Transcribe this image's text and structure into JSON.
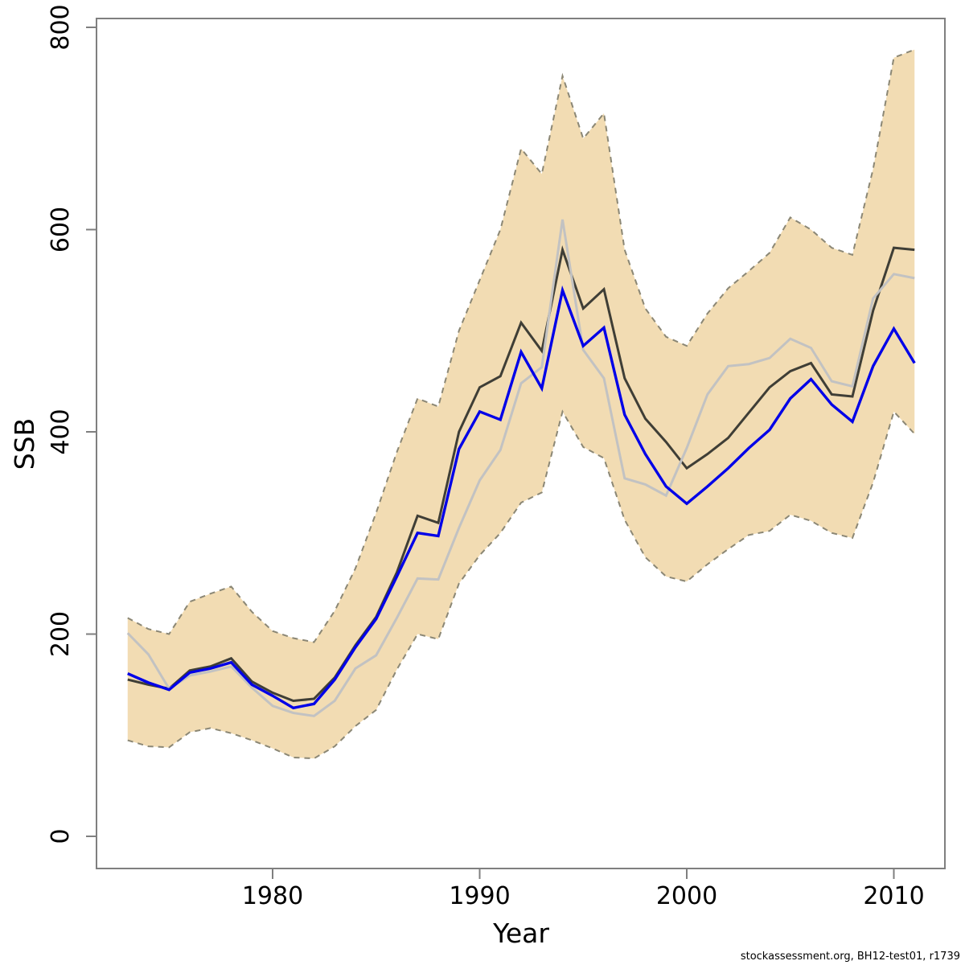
{
  "page": {
    "footer": "stockassessment.org, BH12-test01, r1739"
  },
  "chart_data": {
    "type": "line",
    "title": "",
    "xlabel": "Year",
    "ylabel": "SSB",
    "x_ticks": [
      1980,
      1990,
      2000,
      2010
    ],
    "y_ticks": [
      0,
      200,
      400,
      600,
      800
    ],
    "xlim": [
      1972.4,
      2012.3
    ],
    "ylim": [
      -32,
      809
    ],
    "grid": "off",
    "legend_position": "none",
    "years": [
      1973,
      1974,
      1975,
      1976,
      1977,
      1978,
      1979,
      1980,
      1981,
      1982,
      1983,
      1984,
      1985,
      1986,
      1987,
      1988,
      1989,
      1990,
      1991,
      1992,
      1993,
      1994,
      1995,
      1996,
      1997,
      1998,
      1999,
      2000,
      2001,
      2002,
      2003,
      2004,
      2005,
      2006,
      2007,
      2008,
      2009,
      2010,
      2011
    ],
    "series": [
      {
        "name": "ssb-estimate-dark",
        "color": "#3f3e36",
        "width": 3,
        "values": [
          155,
          150,
          146,
          164,
          168,
          176,
          153,
          142,
          134,
          136,
          157,
          189,
          217,
          261,
          317,
          310,
          400,
          444,
          455,
          508,
          480,
          580,
          522,
          541,
          453,
          413,
          390,
          364,
          378,
          394,
          419,
          444,
          460,
          468,
          437,
          435,
          520,
          582,
          580
        ]
      },
      {
        "name": "ssb-comparison-gray",
        "color": "#c2c2c2",
        "width": 3,
        "values": [
          201,
          180,
          146,
          159,
          163,
          168,
          147,
          129,
          122,
          119,
          134,
          166,
          179,
          216,
          255,
          254,
          305,
          352,
          382,
          448,
          464,
          610,
          481,
          453,
          354,
          348,
          337,
          384,
          437,
          465,
          467,
          473,
          492,
          483,
          450,
          445,
          532,
          556,
          552
        ]
      },
      {
        "name": "ssb-comparison-blue",
        "color": "#0000e8",
        "width": 3.4,
        "values": [
          161,
          152,
          145,
          162,
          166,
          172,
          150,
          139,
          127,
          131,
          155,
          187,
          215,
          257,
          300,
          297,
          383,
          420,
          412,
          479,
          443,
          540,
          485,
          503,
          417,
          378,
          346,
          329,
          346,
          364,
          384,
          402,
          433,
          452,
          427,
          410,
          465,
          502,
          468
        ]
      }
    ],
    "confidence_band": {
      "fill": "#f2dcb3",
      "border_color": "#8b8775",
      "border_style": "dashed",
      "upper": [
        216,
        205,
        200,
        232,
        240,
        247,
        222,
        203,
        196,
        192,
        223,
        265,
        320,
        380,
        433,
        425,
        500,
        550,
        600,
        680,
        655,
        752,
        690,
        715,
        580,
        522,
        494,
        485,
        517,
        542,
        559,
        577,
        612,
        600,
        582,
        575,
        660,
        770,
        778
      ],
      "lower": [
        95,
        89,
        88,
        103,
        107,
        102,
        95,
        87,
        78,
        77,
        89,
        109,
        125,
        165,
        200,
        195,
        250,
        278,
        300,
        330,
        340,
        420,
        385,
        374,
        313,
        276,
        257,
        252,
        269,
        284,
        298,
        302,
        318,
        312,
        300,
        295,
        350,
        420,
        398
      ]
    },
    "axis_color": "#7f7f7f"
  }
}
